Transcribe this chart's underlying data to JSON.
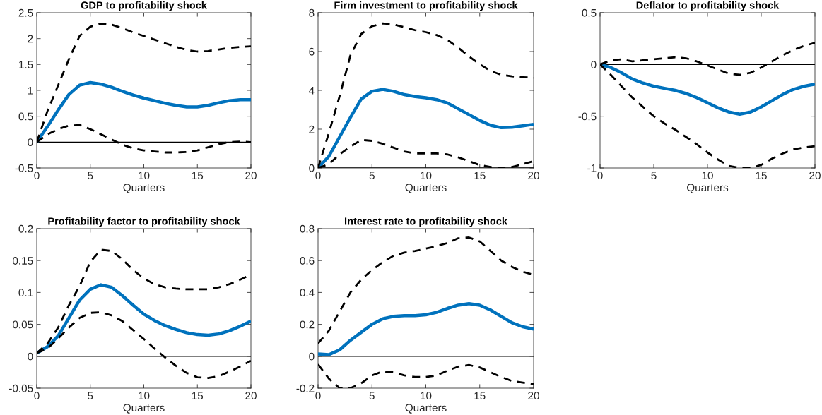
{
  "chart_data": [
    {
      "type": "line",
      "title": "GDP to profitability shock",
      "xlabel": "Quarters",
      "x": [
        0,
        1,
        2,
        3,
        4,
        5,
        6,
        7,
        8,
        9,
        10,
        11,
        12,
        13,
        14,
        15,
        16,
        17,
        18,
        19,
        20
      ],
      "xlim": [
        0,
        20
      ],
      "xticks": [
        0,
        5,
        10,
        15,
        20
      ],
      "ylim": [
        -0.5,
        2.5
      ],
      "yticks": [
        -0.5,
        0,
        0.5,
        1,
        1.5,
        2,
        2.5
      ],
      "grid": false,
      "legend": false,
      "ref_lines": [
        {
          "axis": "y",
          "value": 0,
          "color": "#000000",
          "line_style": "solid"
        }
      ],
      "series": [
        {
          "color": "#0072bd",
          "line_style": "solid",
          "values": [
            0,
            0.3,
            0.62,
            0.92,
            1.1,
            1.15,
            1.12,
            1.06,
            0.98,
            0.91,
            0.85,
            0.8,
            0.75,
            0.71,
            0.68,
            0.68,
            0.71,
            0.76,
            0.8,
            0.82,
            0.82
          ]
        },
        {
          "color": "#000000",
          "line_style": "dashed",
          "values": [
            0,
            0.6,
            1.1,
            1.6,
            2.05,
            2.23,
            2.29,
            2.27,
            2.2,
            2.12,
            2.05,
            1.98,
            1.91,
            1.84,
            1.78,
            1.75,
            1.76,
            1.79,
            1.82,
            1.84,
            1.85
          ]
        },
        {
          "color": "#000000",
          "line_style": "dashed",
          "values": [
            0,
            0.15,
            0.25,
            0.32,
            0.33,
            0.25,
            0.15,
            0.05,
            -0.05,
            -0.12,
            -0.16,
            -0.18,
            -0.2,
            -0.2,
            -0.19,
            -0.16,
            -0.1,
            -0.04,
            0,
            0.01,
            0
          ]
        }
      ]
    },
    {
      "type": "line",
      "title": "Firm investment to profitability shock",
      "xlabel": "Quarters",
      "x": [
        0,
        1,
        2,
        3,
        4,
        5,
        6,
        7,
        8,
        9,
        10,
        11,
        12,
        13,
        14,
        15,
        16,
        17,
        18,
        19,
        20
      ],
      "xlim": [
        0,
        20
      ],
      "xticks": [
        0,
        5,
        10,
        15,
        20
      ],
      "ylim": [
        0,
        8
      ],
      "yticks": [
        0,
        2,
        4,
        6,
        8
      ],
      "grid": false,
      "legend": false,
      "ref_lines": [
        {
          "axis": "y",
          "value": 0,
          "color": "#000000",
          "line_style": "solid"
        }
      ],
      "series": [
        {
          "color": "#0072bd",
          "line_style": "solid",
          "values": [
            0,
            0.6,
            1.6,
            2.6,
            3.55,
            3.95,
            4.05,
            3.95,
            3.78,
            3.68,
            3.62,
            3.52,
            3.35,
            3.05,
            2.75,
            2.45,
            2.2,
            2.08,
            2.1,
            2.17,
            2.25
          ]
        },
        {
          "color": "#000000",
          "line_style": "dashed",
          "values": [
            0,
            1.8,
            3.7,
            5.8,
            6.9,
            7.3,
            7.45,
            7.4,
            7.25,
            7.1,
            7.0,
            6.85,
            6.6,
            6.2,
            5.75,
            5.35,
            5.0,
            4.8,
            4.72,
            4.68,
            4.65
          ]
        },
        {
          "color": "#000000",
          "line_style": "dashed",
          "values": [
            0,
            0.2,
            0.7,
            1.1,
            1.45,
            1.4,
            1.25,
            1.05,
            0.85,
            0.75,
            0.75,
            0.75,
            0.7,
            0.55,
            0.35,
            0.15,
            0.05,
            0,
            0.05,
            0.2,
            0.35
          ]
        }
      ]
    },
    {
      "type": "line",
      "title": "Deflator to profitability shock",
      "xlabel": "Quarters",
      "x": [
        0,
        1,
        2,
        3,
        4,
        5,
        6,
        7,
        8,
        9,
        10,
        11,
        12,
        13,
        14,
        15,
        16,
        17,
        18,
        19,
        20
      ],
      "xlim": [
        0,
        20
      ],
      "xticks": [
        0,
        5,
        10,
        15,
        20
      ],
      "ylim": [
        -1,
        0.5
      ],
      "yticks": [
        -1,
        -0.5,
        0,
        0.5
      ],
      "grid": false,
      "legend": false,
      "ref_lines": [
        {
          "axis": "y",
          "value": 0,
          "color": "#000000",
          "line_style": "solid"
        }
      ],
      "series": [
        {
          "color": "#0072bd",
          "line_style": "solid",
          "values": [
            0,
            -0.03,
            -0.08,
            -0.14,
            -0.18,
            -0.21,
            -0.23,
            -0.25,
            -0.28,
            -0.32,
            -0.37,
            -0.42,
            -0.46,
            -0.48,
            -0.46,
            -0.41,
            -0.35,
            -0.29,
            -0.24,
            -0.21,
            -0.19
          ]
        },
        {
          "color": "#000000",
          "line_style": "dashed",
          "values": [
            0,
            0.04,
            0.05,
            0.03,
            0.04,
            0.05,
            0.06,
            0.07,
            0.06,
            0.03,
            -0.01,
            -0.05,
            -0.09,
            -0.1,
            -0.08,
            -0.03,
            0.03,
            0.09,
            0.14,
            0.18,
            0.21
          ]
        },
        {
          "color": "#000000",
          "line_style": "dashed",
          "values": [
            0,
            -0.1,
            -0.21,
            -0.32,
            -0.41,
            -0.5,
            -0.57,
            -0.63,
            -0.7,
            -0.77,
            -0.85,
            -0.92,
            -0.98,
            -1.0,
            -1.0,
            -0.97,
            -0.91,
            -0.86,
            -0.82,
            -0.8,
            -0.79
          ]
        }
      ]
    },
    {
      "type": "line",
      "title": "Profitability factor to profitability shock",
      "xlabel": "Quarters",
      "x": [
        0,
        1,
        2,
        3,
        4,
        5,
        6,
        7,
        8,
        9,
        10,
        11,
        12,
        13,
        14,
        15,
        16,
        17,
        18,
        19,
        20
      ],
      "xlim": [
        0,
        20
      ],
      "xticks": [
        0,
        5,
        10,
        15,
        20
      ],
      "ylim": [
        -0.05,
        0.2
      ],
      "yticks": [
        -0.05,
        0,
        0.05,
        0.1,
        0.15,
        0.2
      ],
      "grid": false,
      "legend": false,
      "ref_lines": [
        {
          "axis": "y",
          "value": 0,
          "color": "#000000",
          "line_style": "solid"
        }
      ],
      "series": [
        {
          "color": "#0072bd",
          "line_style": "solid",
          "values": [
            0.005,
            0.015,
            0.032,
            0.06,
            0.088,
            0.105,
            0.112,
            0.108,
            0.095,
            0.08,
            0.066,
            0.056,
            0.048,
            0.042,
            0.037,
            0.034,
            0.033,
            0.035,
            0.04,
            0.047,
            0.055
          ]
        },
        {
          "color": "#000000",
          "line_style": "dashed",
          "values": [
            0.005,
            0.02,
            0.045,
            0.08,
            0.11,
            0.148,
            0.167,
            0.165,
            0.152,
            0.135,
            0.122,
            0.113,
            0.108,
            0.106,
            0.105,
            0.105,
            0.105,
            0.108,
            0.113,
            0.12,
            0.128
          ]
        },
        {
          "color": "#000000",
          "line_style": "dashed",
          "values": [
            0.005,
            0.012,
            0.028,
            0.045,
            0.06,
            0.068,
            0.069,
            0.064,
            0.055,
            0.041,
            0.027,
            0.012,
            -0.002,
            -0.015,
            -0.026,
            -0.033,
            -0.034,
            -0.031,
            -0.024,
            -0.016,
            -0.007
          ]
        }
      ]
    },
    {
      "type": "line",
      "title": "Interest rate to profitability shock",
      "xlabel": "Quarters",
      "x": [
        0,
        1,
        2,
        3,
        4,
        5,
        6,
        7,
        8,
        9,
        10,
        11,
        12,
        13,
        14,
        15,
        16,
        17,
        18,
        19,
        20
      ],
      "xlim": [
        0,
        20
      ],
      "xticks": [
        0,
        5,
        10,
        15,
        20
      ],
      "ylim": [
        -0.2,
        0.8
      ],
      "yticks": [
        -0.2,
        0,
        0.2,
        0.4,
        0.6,
        0.8
      ],
      "grid": false,
      "legend": false,
      "ref_lines": [
        {
          "axis": "y",
          "value": 0,
          "color": "#000000",
          "line_style": "solid"
        }
      ],
      "series": [
        {
          "color": "#0072bd",
          "line_style": "solid",
          "values": [
            0.015,
            0.01,
            0.04,
            0.1,
            0.15,
            0.2,
            0.235,
            0.25,
            0.255,
            0.255,
            0.26,
            0.275,
            0.3,
            0.32,
            0.33,
            0.32,
            0.29,
            0.25,
            0.21,
            0.185,
            0.17
          ]
        },
        {
          "color": "#000000",
          "line_style": "dashed",
          "values": [
            0.08,
            0.16,
            0.28,
            0.4,
            0.48,
            0.54,
            0.59,
            0.63,
            0.65,
            0.66,
            0.675,
            0.69,
            0.71,
            0.74,
            0.745,
            0.72,
            0.66,
            0.6,
            0.56,
            0.53,
            0.51
          ]
        },
        {
          "color": "#000000",
          "line_style": "dashed",
          "values": [
            -0.05,
            -0.14,
            -0.2,
            -0.2,
            -0.17,
            -0.12,
            -0.095,
            -0.1,
            -0.12,
            -0.13,
            -0.13,
            -0.12,
            -0.09,
            -0.065,
            -0.055,
            -0.07,
            -0.1,
            -0.13,
            -0.155,
            -0.165,
            -0.175
          ]
        }
      ]
    }
  ]
}
